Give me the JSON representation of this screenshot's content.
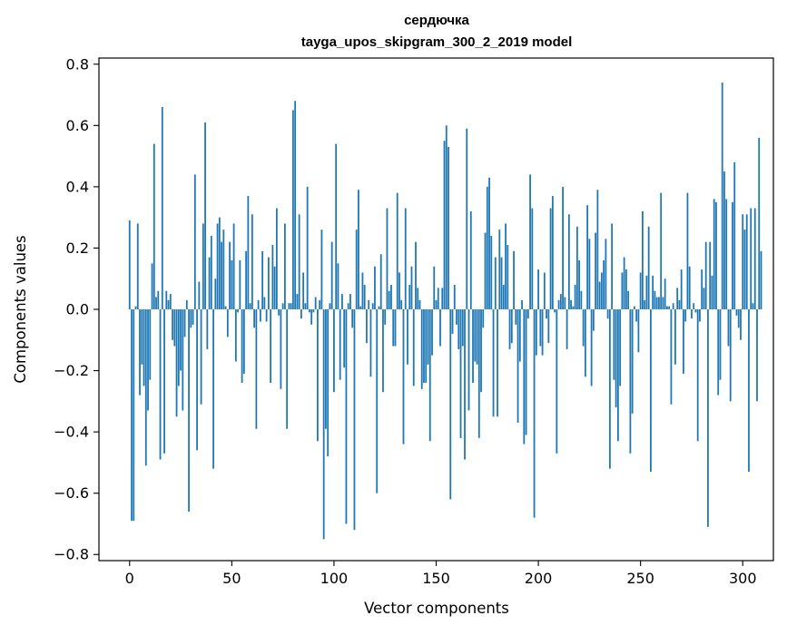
{
  "chart_data": {
    "type": "bar",
    "title": [
      "сердючка",
      "tayga_upos_skipgram_300_2_2019 model"
    ],
    "xlabel": "Vector components",
    "ylabel": "Components values",
    "xlim": [
      -15,
      315
    ],
    "ylim": [
      -0.82,
      0.82
    ],
    "xticks": [
      0,
      50,
      100,
      150,
      200,
      250,
      300
    ],
    "xtick_labels": [
      "0",
      "50",
      "100",
      "150",
      "200",
      "250",
      "300"
    ],
    "yticks": [
      -0.8,
      -0.6,
      -0.4,
      -0.2,
      0.0,
      0.2,
      0.4,
      0.6,
      0.8
    ],
    "ytick_labels": [
      "−0.8",
      "−0.6",
      "−0.4",
      "−0.2",
      "0.0",
      "0.2",
      "0.4",
      "0.6",
      "0.8"
    ],
    "bar_color": "#1f77b4",
    "series": [
      {
        "name": "сердючка",
        "values": [
          0.29,
          -0.69,
          -0.69,
          0.01,
          0.28,
          -0.28,
          -0.18,
          -0.25,
          -0.51,
          -0.33,
          -0.23,
          0.15,
          0.54,
          0.04,
          0.06,
          -0.49,
          0.66,
          -0.47,
          0.06,
          0.03,
          0.05,
          -0.1,
          -0.12,
          -0.35,
          -0.25,
          -0.2,
          -0.33,
          -0.09,
          0.03,
          -0.66,
          -0.06,
          -0.05,
          0.44,
          -0.46,
          0.09,
          -0.31,
          0.28,
          0.61,
          -0.13,
          0.17,
          0.24,
          -0.52,
          0.1,
          0.28,
          0.3,
          0.22,
          0.26,
          0.01,
          -0.09,
          0.22,
          0.16,
          0.28,
          -0.17,
          -0.01,
          0.16,
          -0.24,
          -0.21,
          0.19,
          0.37,
          0.02,
          0.31,
          -0.06,
          -0.39,
          0.03,
          -0.04,
          0.19,
          0.04,
          -0.04,
          0.17,
          -0.24,
          0.21,
          0.14,
          0.33,
          -0.02,
          -0.26,
          0.02,
          0.28,
          -0.39,
          0.02,
          0.02,
          0.65,
          0.68,
          0.05,
          0.31,
          -0.03,
          0.12,
          0.02,
          0.4,
          -0.01,
          -0.05,
          -0.01,
          0.04,
          -0.43,
          0.03,
          0.26,
          -0.75,
          -0.39,
          -0.48,
          0.02,
          0.22,
          -0.27,
          0.54,
          0.15,
          -0.23,
          0.05,
          -0.19,
          -0.7,
          0.02,
          0.05,
          -0.06,
          -0.72,
          0.26,
          0.39,
          0.01,
          0.12,
          0.08,
          -0.11,
          0.03,
          -0.22,
          0.02,
          0.14,
          -0.6,
          0.01,
          0.18,
          -0.27,
          -0.05,
          0.33,
          0.06,
          0.08,
          -0.12,
          -0.12,
          0.38,
          0.12,
          0.03,
          -0.44,
          0.33,
          -0.18,
          0.08,
          0.14,
          -0.25,
          0.22,
          0.07,
          0.03,
          -0.26,
          -0.24,
          -0.24,
          -0.18,
          -0.43,
          -0.15,
          0.14,
          0.03,
          0.07,
          -0.12,
          0.07,
          0.55,
          0.6,
          0.53,
          -0.62,
          -0.08,
          0.08,
          -0.05,
          -0.13,
          -0.42,
          -0.12,
          -0.49,
          0.59,
          -0.33,
          0.32,
          -0.24,
          -0.17,
          -0.18,
          -0.42,
          -0.27,
          -0.06,
          0.25,
          0.4,
          0.43,
          0.24,
          -0.35,
          0.17,
          -0.35,
          0.26,
          0.17,
          0.08,
          0.28,
          0.21,
          -0.13,
          -0.11,
          0.19,
          -0.05,
          -0.37,
          -0.17,
          0.03,
          -0.44,
          -0.41,
          -0.03,
          0.44,
          0.33,
          -0.68,
          -0.15,
          0.13,
          -0.12,
          -0.15,
          0.12,
          -0.03,
          -0.11,
          0.33,
          0.37,
          -0.01,
          -0.47,
          0.03,
          0.05,
          0.4,
          0.04,
          -0.13,
          0.31,
          0.03,
          0.01,
          0.08,
          0.27,
          0.16,
          0.06,
          -0.12,
          -0.22,
          0.34,
          0.23,
          -0.25,
          -0.07,
          0.25,
          0.39,
          0.09,
          0.12,
          0.16,
          0.23,
          -0.03,
          -0.52,
          0.28,
          -0.23,
          -0.32,
          -0.43,
          -0.25,
          0.12,
          0.17,
          0.13,
          0.06,
          -0.47,
          -0.34,
          0.01,
          -0.04,
          -0.14,
          0.12,
          0.32,
          0.03,
          0.11,
          0.27,
          -0.53,
          0.11,
          0.06,
          0.04,
          0.04,
          0.38,
          0.04,
          0.1,
          0.01,
          0.01,
          -0.31,
          0.02,
          -0.18,
          0.07,
          0.03,
          0.13,
          -0.21,
          -0.04,
          0.38,
          0.14,
          -0.03,
          0.02,
          -0.01,
          -0.43,
          -0.04,
          0.13,
          0.07,
          0.22,
          -0.71,
          0.22,
          0.11,
          0.36,
          0.35,
          -0.28,
          -0.23,
          0.74,
          0.45,
          0.36,
          -0.12,
          -0.3,
          0.35,
          0.48,
          -0.02,
          -0.06,
          -0.1,
          0.31,
          0.26,
          0.31,
          -0.53,
          0.33,
          0.02,
          0.33,
          -0.3,
          0.56,
          0.19
        ]
      }
    ]
  }
}
